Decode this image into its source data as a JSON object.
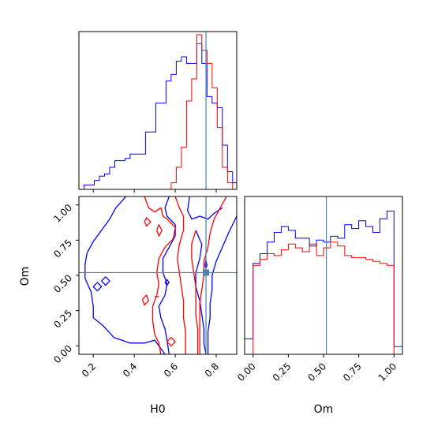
{
  "chart_data": {
    "type": "corner",
    "parameters": [
      "H0",
      "Om"
    ],
    "truth": {
      "H0": 0.75,
      "Om": 0.52
    },
    "truth_color": "#4682b4",
    "series": [
      {
        "color": "#0000ff"
      },
      {
        "color": "#ff0000"
      }
    ],
    "panels": {
      "H0_marginal": {
        "type": "histogram",
        "xlim": [
          0.13,
          0.9
        ],
        "bin_edges": [
          0.13,
          0.155,
          0.18,
          0.205,
          0.23,
          0.255,
          0.28,
          0.305,
          0.33,
          0.355,
          0.38,
          0.405,
          0.43,
          0.455,
          0.48,
          0.505,
          0.53,
          0.555,
          0.58,
          0.605,
          0.63,
          0.655,
          0.68,
          0.705,
          0.73,
          0.755,
          0.78,
          0.805,
          0.83,
          0.855,
          0.88,
          0.9
        ],
        "blue_counts": [
          0,
          2,
          2,
          4,
          6,
          7,
          10,
          13,
          13,
          14,
          16,
          16,
          16,
          26,
          26,
          39,
          39,
          49,
          52,
          58,
          60,
          57,
          57,
          66,
          57,
          42,
          39,
          37,
          20,
          8,
          3
        ],
        "red_counts": [
          0,
          0,
          0,
          0,
          0,
          0,
          0,
          0,
          0,
          0,
          0,
          0,
          0,
          0,
          0,
          0,
          0,
          0,
          3,
          10,
          19,
          40,
          50,
          70,
          63,
          57,
          46,
          28,
          10,
          3,
          0
        ]
      },
      "Om_marginal": {
        "type": "histogram",
        "xlim": [
          -0.06,
          1.06
        ],
        "xticks": [
          "0.00",
          "0.25",
          "0.50",
          "0.75",
          "1.00"
        ],
        "tick_values": [
          0,
          0.25,
          0.5,
          0.75,
          1.0
        ],
        "xlabel": "Om",
        "bin_edges": [
          -0.06,
          0.0,
          0.05,
          0.1,
          0.15,
          0.2,
          0.25,
          0.3,
          0.35,
          0.4,
          0.45,
          0.5,
          0.55,
          0.6,
          0.65,
          0.7,
          0.75,
          0.8,
          0.85,
          0.9,
          0.95,
          1.0,
          1.06
        ],
        "blue_counts": [
          8,
          47,
          52,
          58,
          63,
          66,
          64,
          60,
          60,
          56,
          59,
          58,
          61,
          60,
          67,
          65,
          69,
          66,
          63,
          70,
          74,
          4
        ],
        "red_counts": [
          0,
          46,
          49,
          52,
          51,
          54,
          57,
          55,
          53,
          57,
          51,
          55,
          58,
          56,
          51,
          50,
          50,
          49,
          48,
          47,
          46,
          0
        ]
      },
      "joint": {
        "type": "contour",
        "xlim": [
          0.13,
          0.9
        ],
        "ylim": [
          -0.06,
          1.06
        ],
        "xticks": [
          "0.2",
          "0.4",
          "0.6",
          "0.8"
        ],
        "xtick_values": [
          0.2,
          0.4,
          0.6,
          0.8
        ],
        "yticks": [
          "0.00",
          "0.25",
          "0.50",
          "0.75",
          "1.00"
        ],
        "ytick_values": [
          0,
          0.25,
          0.5,
          0.75,
          1.0
        ],
        "xlabel": "H0",
        "ylabel": "Om",
        "blue_contours": [
          [
            [
              0.36,
              1.06
            ],
            [
              0.31,
              0.98
            ],
            [
              0.28,
              0.9
            ],
            [
              0.24,
              0.82
            ],
            [
              0.2,
              0.74
            ],
            [
              0.17,
              0.66
            ],
            [
              0.16,
              0.58
            ],
            [
              0.16,
              0.48
            ],
            [
              0.19,
              0.38
            ],
            [
              0.2,
              0.28
            ],
            [
              0.2,
              0.2
            ],
            [
              0.25,
              0.14
            ],
            [
              0.3,
              0.06
            ],
            [
              0.38,
              0.02
            ],
            [
              0.45,
              0.02
            ],
            [
              0.5,
              0.04
            ],
            [
              0.52,
              0.0
            ],
            [
              0.55,
              -0.06
            ]
          ],
          [
            [
              0.57,
              1.06
            ],
            [
              0.55,
              0.98
            ],
            [
              0.56,
              0.92
            ],
            [
              0.6,
              0.86
            ],
            [
              0.6,
              0.78
            ],
            [
              0.57,
              0.7
            ],
            [
              0.54,
              0.62
            ],
            [
              0.54,
              0.52
            ],
            [
              0.56,
              0.44
            ],
            [
              0.55,
              0.36
            ],
            [
              0.52,
              0.28
            ],
            [
              0.53,
              0.2
            ],
            [
              0.55,
              0.12
            ],
            [
              0.56,
              0.04
            ],
            [
              0.57,
              -0.06
            ]
          ],
          [
            [
              0.67,
              1.06
            ],
            [
              0.66,
              0.96
            ],
            [
              0.68,
              0.9
            ],
            [
              0.72,
              0.92
            ],
            [
              0.76,
              0.9
            ],
            [
              0.79,
              0.94
            ],
            [
              0.83,
              0.98
            ]
          ],
          [
            [
              0.7,
              0.82
            ],
            [
              0.73,
              0.72
            ],
            [
              0.72,
              0.62
            ],
            [
              0.7,
              0.52
            ],
            [
              0.7,
              0.42
            ],
            [
              0.72,
              0.32
            ],
            [
              0.73,
              0.22
            ],
            [
              0.74,
              0.12
            ],
            [
              0.74,
              0.02
            ],
            [
              0.75,
              -0.06
            ]
          ],
          [
            [
              0.9,
              0.92
            ],
            [
              0.86,
              0.8
            ],
            [
              0.83,
              0.7
            ],
            [
              0.8,
              0.6
            ],
            [
              0.78,
              0.5
            ],
            [
              0.78,
              0.4
            ],
            [
              0.77,
              0.3
            ],
            [
              0.77,
              0.2
            ],
            [
              0.76,
              0.1
            ],
            [
              0.76,
              -0.06
            ]
          ]
        ],
        "blue_blobs": [
          [
            [
              0.2,
              0.42
            ],
            [
              0.22,
              0.45
            ],
            [
              0.24,
              0.42
            ],
            [
              0.22,
              0.39
            ],
            [
              0.2,
              0.42
            ]
          ],
          [
            [
              0.24,
              0.46
            ],
            [
              0.26,
              0.49
            ],
            [
              0.28,
              0.46
            ],
            [
              0.26,
              0.43
            ],
            [
              0.24,
              0.46
            ]
          ],
          [
            [
              0.55,
              0.45
            ],
            [
              0.56,
              0.47
            ],
            [
              0.57,
              0.45
            ],
            [
              0.56,
              0.43
            ],
            [
              0.55,
              0.45
            ]
          ],
          [
            [
              0.745,
              0.57
            ],
            [
              0.75,
              0.61
            ],
            [
              0.755,
              0.57
            ],
            [
              0.75,
              0.55
            ],
            [
              0.745,
              0.57
            ]
          ]
        ],
        "red_contours": [
          [
            [
              0.45,
              1.06
            ],
            [
              0.47,
              0.98
            ],
            [
              0.5,
              0.95
            ],
            [
              0.53,
              0.98
            ],
            [
              0.54,
              0.92
            ],
            [
              0.56,
              0.9
            ],
            [
              0.6,
              0.84
            ],
            [
              0.59,
              0.76
            ],
            [
              0.55,
              0.7
            ],
            [
              0.52,
              0.62
            ],
            [
              0.51,
              0.52
            ],
            [
              0.52,
              0.44
            ],
            [
              0.51,
              0.36
            ],
            [
              0.49,
              0.28
            ],
            [
              0.49,
              0.18
            ],
            [
              0.5,
              0.08
            ],
            [
              0.52,
              0.02
            ],
            [
              0.53,
              -0.06
            ]
          ],
          [
            [
              0.6,
              1.06
            ],
            [
              0.62,
              0.98
            ],
            [
              0.64,
              0.92
            ],
            [
              0.64,
              0.82
            ],
            [
              0.62,
              0.72
            ],
            [
              0.61,
              0.62
            ],
            [
              0.62,
              0.52
            ],
            [
              0.63,
              0.42
            ],
            [
              0.64,
              0.32
            ],
            [
              0.64,
              0.2
            ],
            [
              0.65,
              0.1
            ],
            [
              0.65,
              -0.06
            ]
          ],
          [
            [
              0.7,
              0.82
            ],
            [
              0.68,
              0.72
            ],
            [
              0.68,
              0.62
            ],
            [
              0.69,
              0.52
            ],
            [
              0.7,
              0.42
            ],
            [
              0.7,
              0.32
            ],
            [
              0.7,
              0.22
            ],
            [
              0.71,
              0.12
            ],
            [
              0.71,
              -0.06
            ]
          ],
          [
            [
              0.85,
              1.06
            ],
            [
              0.82,
              0.98
            ],
            [
              0.79,
              0.9
            ],
            [
              0.77,
              0.8
            ],
            [
              0.76,
              0.7
            ],
            [
              0.74,
              0.6
            ],
            [
              0.74,
              0.5
            ],
            [
              0.73,
              0.4
            ],
            [
              0.72,
              0.3
            ],
            [
              0.72,
              0.2
            ],
            [
              0.72,
              0.1
            ],
            [
              0.72,
              -0.06
            ]
          ]
        ],
        "red_blobs": [
          [
            [
              0.45,
              0.88
            ],
            [
              0.46,
              0.91
            ],
            [
              0.48,
              0.88
            ],
            [
              0.46,
              0.85
            ],
            [
              0.45,
              0.88
            ]
          ],
          [
            [
              0.51,
              0.82
            ],
            [
              0.52,
              0.86
            ],
            [
              0.535,
              0.82
            ],
            [
              0.52,
              0.78
            ],
            [
              0.51,
              0.82
            ]
          ],
          [
            [
              0.44,
              0.33
            ],
            [
              0.46,
              0.36
            ],
            [
              0.47,
              0.32
            ],
            [
              0.45,
              0.29
            ],
            [
              0.44,
              0.33
            ]
          ],
          [
            [
              0.5,
              0.35
            ],
            [
              0.52,
              0.35
            ]
          ],
          [
            [
              0.56,
              0.03
            ],
            [
              0.58,
              0.06
            ],
            [
              0.6,
              0.03
            ],
            [
              0.58,
              0.0
            ],
            [
              0.56,
              0.03
            ]
          ]
        ]
      }
    }
  }
}
